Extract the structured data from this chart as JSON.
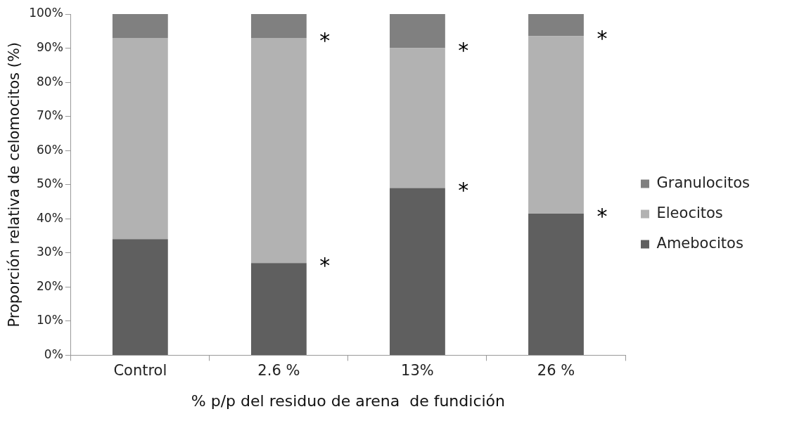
{
  "chart_data": {
    "type": "bar",
    "stacked": true,
    "xlabel": "% p/p del residuo de arena  de fundición",
    "ylabel": "Proporción relativa de celomocitos (%)",
    "categories": [
      "Control",
      "2.6 %",
      "13%",
      "26 %"
    ],
    "series": [
      {
        "name": "Amebocitos",
        "color": "#5f5f5f",
        "values": [
          34,
          27,
          49,
          41.5
        ]
      },
      {
        "name": "Eleocitos",
        "color": "#b2b2b2",
        "values": [
          59,
          66,
          41,
          52
        ]
      },
      {
        "name": "Granulocitos",
        "color": "#808080",
        "values": [
          7,
          7,
          10,
          6.5
        ]
      }
    ],
    "ylim": [
      0,
      100
    ],
    "yticks": [
      {
        "value": 0,
        "label": "0%"
      },
      {
        "value": 10,
        "label": "10%"
      },
      {
        "value": 20,
        "label": "20%"
      },
      {
        "value": 30,
        "label": "30%"
      },
      {
        "value": 40,
        "label": "40%"
      },
      {
        "value": 50,
        "label": "50%"
      },
      {
        "value": 60,
        "label": "60%"
      },
      {
        "value": 70,
        "label": "70%"
      },
      {
        "value": 80,
        "label": "80%"
      },
      {
        "value": 90,
        "label": "90%"
      },
      {
        "value": 100,
        "label": "100%"
      }
    ],
    "grid": false,
    "legend": "right",
    "annotations": [
      {
        "text": "*",
        "x": "2.6 %",
        "y": 93
      },
      {
        "text": "*",
        "x": "2.6 %",
        "y": 27
      },
      {
        "text": "*",
        "x": "13%",
        "y": 90
      },
      {
        "text": "*",
        "x": "13%",
        "y": 49
      },
      {
        "text": "*",
        "x": "26 %",
        "y": 93.5
      },
      {
        "text": "*",
        "x": "26 %",
        "y": 41.5
      }
    ]
  }
}
